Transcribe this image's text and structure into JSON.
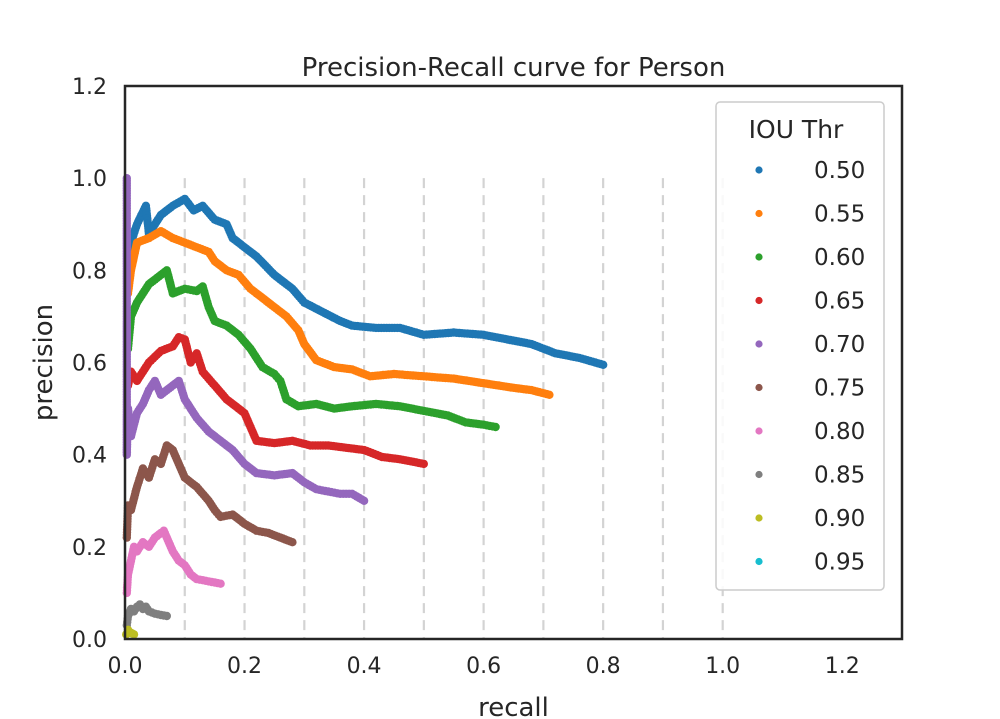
{
  "chart_data": {
    "type": "scatter",
    "title": "Precision-Recall curve for Person",
    "xlabel": "recall",
    "ylabel": "precision",
    "xlim": [
      0,
      1.3
    ],
    "ylim": [
      0,
      1.2
    ],
    "xticks": [
      "0.0",
      "0.2",
      "0.4",
      "0.6",
      "0.8",
      "1.0",
      "1.2"
    ],
    "yticks": [
      "0.0",
      "0.2",
      "0.4",
      "0.6",
      "0.8",
      "1.0",
      "1.2"
    ],
    "grid": "dashed vertical lines at recall 0.1 to 1.0",
    "legend": {
      "title": "IOU Thr",
      "placement": "upper right"
    },
    "series": [
      {
        "name": "0.50",
        "color": "#1f77b4",
        "points": [
          [
            0.005,
            0.78
          ],
          [
            0.01,
            0.86
          ],
          [
            0.02,
            0.9
          ],
          [
            0.035,
            0.94
          ],
          [
            0.04,
            0.88
          ],
          [
            0.06,
            0.92
          ],
          [
            0.08,
            0.94
          ],
          [
            0.1,
            0.955
          ],
          [
            0.115,
            0.93
          ],
          [
            0.13,
            0.94
          ],
          [
            0.15,
            0.91
          ],
          [
            0.17,
            0.9
          ],
          [
            0.18,
            0.87
          ],
          [
            0.2,
            0.85
          ],
          [
            0.22,
            0.83
          ],
          [
            0.25,
            0.79
          ],
          [
            0.28,
            0.76
          ],
          [
            0.3,
            0.73
          ],
          [
            0.33,
            0.71
          ],
          [
            0.36,
            0.69
          ],
          [
            0.38,
            0.68
          ],
          [
            0.42,
            0.675
          ],
          [
            0.46,
            0.675
          ],
          [
            0.5,
            0.66
          ],
          [
            0.55,
            0.665
          ],
          [
            0.6,
            0.66
          ],
          [
            0.64,
            0.65
          ],
          [
            0.68,
            0.64
          ],
          [
            0.72,
            0.62
          ],
          [
            0.76,
            0.61
          ],
          [
            0.8,
            0.595
          ]
        ]
      },
      {
        "name": "0.55",
        "color": "#ff7f0e",
        "points": [
          [
            0.005,
            0.75
          ],
          [
            0.01,
            0.8
          ],
          [
            0.02,
            0.86
          ],
          [
            0.04,
            0.87
          ],
          [
            0.06,
            0.885
          ],
          [
            0.08,
            0.87
          ],
          [
            0.1,
            0.86
          ],
          [
            0.12,
            0.85
          ],
          [
            0.14,
            0.84
          ],
          [
            0.15,
            0.82
          ],
          [
            0.17,
            0.8
          ],
          [
            0.19,
            0.79
          ],
          [
            0.21,
            0.76
          ],
          [
            0.24,
            0.73
          ],
          [
            0.27,
            0.7
          ],
          [
            0.29,
            0.67
          ],
          [
            0.3,
            0.64
          ],
          [
            0.32,
            0.605
          ],
          [
            0.35,
            0.59
          ],
          [
            0.38,
            0.585
          ],
          [
            0.41,
            0.57
          ],
          [
            0.45,
            0.575
          ],
          [
            0.5,
            0.57
          ],
          [
            0.55,
            0.565
          ],
          [
            0.6,
            0.555
          ],
          [
            0.65,
            0.545
          ],
          [
            0.68,
            0.54
          ],
          [
            0.71,
            0.53
          ]
        ]
      },
      {
        "name": "0.60",
        "color": "#2ca02c",
        "points": [
          [
            0.005,
            0.63
          ],
          [
            0.01,
            0.7
          ],
          [
            0.02,
            0.73
          ],
          [
            0.04,
            0.77
          ],
          [
            0.06,
            0.79
          ],
          [
            0.07,
            0.8
          ],
          [
            0.08,
            0.75
          ],
          [
            0.1,
            0.76
          ],
          [
            0.12,
            0.755
          ],
          [
            0.13,
            0.765
          ],
          [
            0.14,
            0.72
          ],
          [
            0.15,
            0.69
          ],
          [
            0.17,
            0.68
          ],
          [
            0.19,
            0.66
          ],
          [
            0.21,
            0.63
          ],
          [
            0.23,
            0.59
          ],
          [
            0.25,
            0.575
          ],
          [
            0.26,
            0.56
          ],
          [
            0.27,
            0.52
          ],
          [
            0.29,
            0.505
          ],
          [
            0.32,
            0.51
          ],
          [
            0.35,
            0.5
          ],
          [
            0.38,
            0.505
          ],
          [
            0.42,
            0.51
          ],
          [
            0.46,
            0.505
          ],
          [
            0.5,
            0.495
          ],
          [
            0.54,
            0.485
          ],
          [
            0.57,
            0.47
          ],
          [
            0.6,
            0.465
          ],
          [
            0.62,
            0.46
          ]
        ]
      },
      {
        "name": "0.65",
        "color": "#d62728",
        "points": [
          [
            0.005,
            0.55
          ],
          [
            0.01,
            0.58
          ],
          [
            0.02,
            0.56
          ],
          [
            0.04,
            0.6
          ],
          [
            0.06,
            0.625
          ],
          [
            0.08,
            0.635
          ],
          [
            0.09,
            0.655
          ],
          [
            0.1,
            0.65
          ],
          [
            0.11,
            0.6
          ],
          [
            0.12,
            0.62
          ],
          [
            0.13,
            0.58
          ],
          [
            0.15,
            0.55
          ],
          [
            0.17,
            0.52
          ],
          [
            0.19,
            0.5
          ],
          [
            0.2,
            0.49
          ],
          [
            0.21,
            0.46
          ],
          [
            0.22,
            0.43
          ],
          [
            0.25,
            0.425
          ],
          [
            0.28,
            0.43
          ],
          [
            0.31,
            0.42
          ],
          [
            0.34,
            0.42
          ],
          [
            0.37,
            0.415
          ],
          [
            0.4,
            0.41
          ],
          [
            0.43,
            0.395
          ],
          [
            0.46,
            0.39
          ],
          [
            0.5,
            0.38
          ]
        ]
      },
      {
        "name": "0.70",
        "color": "#9467bd",
        "points": [
          [
            0.003,
            1.0
          ],
          [
            0.003,
            0.4
          ],
          [
            0.005,
            0.5
          ],
          [
            0.01,
            0.44
          ],
          [
            0.02,
            0.49
          ],
          [
            0.03,
            0.51
          ],
          [
            0.04,
            0.54
          ],
          [
            0.05,
            0.56
          ],
          [
            0.06,
            0.53
          ],
          [
            0.08,
            0.55
          ],
          [
            0.09,
            0.56
          ],
          [
            0.1,
            0.52
          ],
          [
            0.11,
            0.5
          ],
          [
            0.12,
            0.48
          ],
          [
            0.14,
            0.45
          ],
          [
            0.16,
            0.43
          ],
          [
            0.18,
            0.41
          ],
          [
            0.2,
            0.38
          ],
          [
            0.22,
            0.36
          ],
          [
            0.25,
            0.355
          ],
          [
            0.28,
            0.36
          ],
          [
            0.3,
            0.34
          ],
          [
            0.32,
            0.325
          ],
          [
            0.34,
            0.32
          ],
          [
            0.36,
            0.315
          ],
          [
            0.38,
            0.315
          ],
          [
            0.4,
            0.3
          ]
        ]
      },
      {
        "name": "0.75",
        "color": "#8c564b",
        "points": [
          [
            0.003,
            0.22
          ],
          [
            0.005,
            0.29
          ],
          [
            0.01,
            0.28
          ],
          [
            0.02,
            0.33
          ],
          [
            0.03,
            0.37
          ],
          [
            0.04,
            0.35
          ],
          [
            0.05,
            0.39
          ],
          [
            0.06,
            0.38
          ],
          [
            0.07,
            0.42
          ],
          [
            0.08,
            0.41
          ],
          [
            0.09,
            0.38
          ],
          [
            0.1,
            0.35
          ],
          [
            0.12,
            0.33
          ],
          [
            0.14,
            0.3
          ],
          [
            0.15,
            0.28
          ],
          [
            0.16,
            0.265
          ],
          [
            0.18,
            0.27
          ],
          [
            0.2,
            0.25
          ],
          [
            0.22,
            0.235
          ],
          [
            0.24,
            0.23
          ],
          [
            0.26,
            0.22
          ],
          [
            0.28,
            0.21
          ]
        ]
      },
      {
        "name": "0.80",
        "color": "#e377c2",
        "points": [
          [
            0.003,
            0.1
          ],
          [
            0.005,
            0.14
          ],
          [
            0.01,
            0.17
          ],
          [
            0.015,
            0.2
          ],
          [
            0.02,
            0.19
          ],
          [
            0.03,
            0.21
          ],
          [
            0.04,
            0.2
          ],
          [
            0.05,
            0.22
          ],
          [
            0.06,
            0.23
          ],
          [
            0.065,
            0.235
          ],
          [
            0.07,
            0.22
          ],
          [
            0.08,
            0.19
          ],
          [
            0.09,
            0.17
          ],
          [
            0.1,
            0.16
          ],
          [
            0.11,
            0.14
          ],
          [
            0.12,
            0.13
          ],
          [
            0.14,
            0.125
          ],
          [
            0.16,
            0.12
          ]
        ]
      },
      {
        "name": "0.85",
        "color": "#7f7f7f",
        "points": [
          [
            0.003,
            0.03
          ],
          [
            0.005,
            0.05
          ],
          [
            0.01,
            0.065
          ],
          [
            0.015,
            0.06
          ],
          [
            0.02,
            0.07
          ],
          [
            0.025,
            0.075
          ],
          [
            0.03,
            0.065
          ],
          [
            0.035,
            0.07
          ],
          [
            0.04,
            0.06
          ],
          [
            0.05,
            0.055
          ],
          [
            0.06,
            0.052
          ],
          [
            0.07,
            0.05
          ]
        ]
      },
      {
        "name": "0.90",
        "color": "#bcbd22",
        "points": [
          [
            0.002,
            0.01
          ],
          [
            0.005,
            0.02
          ],
          [
            0.008,
            0.015
          ],
          [
            0.012,
            0.012
          ],
          [
            0.015,
            0.01
          ]
        ]
      },
      {
        "name": "0.95",
        "color": "#17becf",
        "points": []
      }
    ]
  }
}
